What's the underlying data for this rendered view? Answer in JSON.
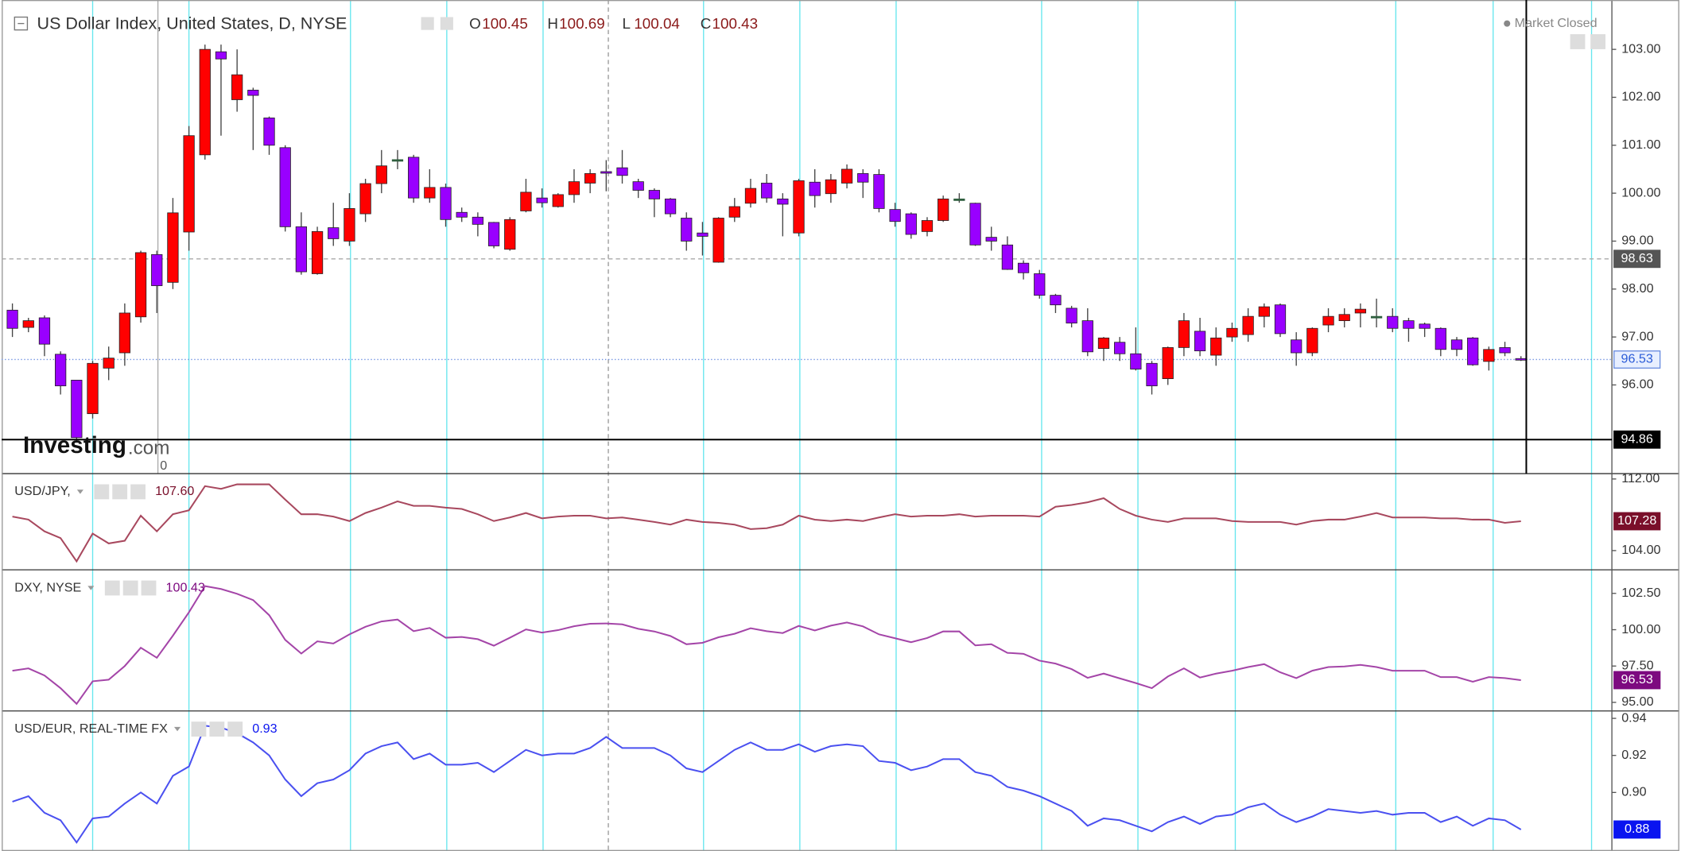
{
  "chart_data": [
    {
      "type": "candlestick",
      "title": "US Dollar Index, United States, D, NYSE",
      "header": [
        {
          "key": "O",
          "label": "100.45"
        },
        {
          "key": "H",
          "label": "100.69"
        },
        {
          "key": "L",
          "label": "100.04"
        },
        {
          "key": "C",
          "label": "100.43"
        }
      ],
      "status": "Market Closed",
      "logo": [
        "Investing",
        ".com"
      ],
      "annotations": [
        "0"
      ],
      "up_color": "#ff0000",
      "down_color": "#9900ff",
      "doji_color": "#2f5f3f",
      "ylim": [
        94.15,
        104.03
      ],
      "yticks": [
        {
          "value": 96,
          "label": "96.00"
        },
        {
          "value": 97,
          "label": "97.00"
        },
        {
          "value": 98,
          "label": "98.00"
        },
        {
          "value": 99,
          "label": "99.00"
        },
        {
          "value": 100,
          "label": "100.00"
        },
        {
          "value": 101,
          "label": "101.00"
        },
        {
          "value": 102,
          "label": "102.00"
        },
        {
          "value": 103,
          "label": "103.00"
        }
      ],
      "level_line": {
        "value": 98.63,
        "label": "98.63"
      },
      "crosshair": {
        "value": 94.86,
        "label": "94.86"
      },
      "last_label": "96.53",
      "open": [
        97.56,
        97.2,
        97.4,
        96.64,
        96.1,
        95.4,
        96.35,
        96.67,
        97.42,
        98.72,
        98.14,
        99.19,
        100.8,
        102.95,
        101.95,
        102.15,
        101.57,
        100.95,
        99.3,
        98.32,
        99.28,
        99.0,
        99.57,
        100.2,
        100.7,
        100.75,
        99.9,
        100.12,
        99.6,
        99.5,
        99.39,
        98.83,
        99.63,
        99.9,
        99.72,
        99.97,
        100.21,
        100.45,
        100.53,
        100.24,
        100.06,
        99.88,
        99.48,
        99.17,
        98.56,
        99.5,
        99.79,
        100.21,
        99.88,
        99.17,
        100.23,
        99.99,
        100.21,
        100.41,
        100.39,
        99.66,
        99.57,
        99.2,
        99.43,
        99.88,
        99.79,
        99.08,
        98.92,
        98.54,
        98.32,
        97.87,
        97.6,
        97.34,
        96.76,
        96.89,
        96.65,
        96.45,
        96.13,
        96.78,
        97.12,
        96.62,
        97.0,
        97.05,
        97.43,
        97.67,
        96.94,
        96.67,
        97.25,
        97.34,
        97.5,
        97.43,
        97.43,
        97.34,
        97.27,
        97.18,
        96.94,
        96.98,
        96.49,
        96.78,
        96.55
      ],
      "high": [
        97.7,
        97.4,
        97.45,
        96.7,
        96.1,
        96.5,
        96.8,
        97.7,
        98.8,
        98.8,
        99.9,
        101.4,
        103.1,
        103.1,
        103.0,
        102.2,
        101.6,
        101.0,
        99.6,
        99.3,
        99.8,
        100.0,
        100.3,
        100.9,
        100.9,
        100.8,
        100.5,
        100.2,
        99.7,
        99.6,
        99.4,
        99.5,
        100.3,
        100.1,
        100.0,
        100.5,
        100.5,
        100.69,
        100.9,
        100.3,
        100.1,
        99.9,
        99.6,
        99.4,
        99.5,
        99.9,
        100.3,
        100.4,
        100.0,
        100.3,
        100.5,
        100.4,
        100.6,
        100.5,
        100.5,
        99.8,
        99.6,
        99.5,
        99.95,
        100.0,
        99.8,
        99.3,
        99.1,
        98.6,
        98.4,
        97.9,
        97.65,
        97.6,
        97.0,
        97.0,
        97.2,
        96.5,
        96.8,
        97.5,
        97.4,
        97.2,
        97.3,
        97.6,
        97.7,
        97.7,
        97.1,
        97.2,
        97.6,
        97.6,
        97.7,
        97.8,
        97.6,
        97.4,
        97.3,
        97.2,
        97.0,
        97.0,
        96.8,
        96.9,
        96.6
      ],
      "low": [
        97.0,
        97.1,
        96.6,
        95.8,
        94.8,
        95.3,
        96.1,
        96.4,
        97.3,
        97.5,
        98.0,
        98.8,
        100.7,
        101.2,
        101.7,
        100.9,
        100.8,
        99.2,
        98.3,
        98.3,
        98.9,
        98.9,
        99.4,
        100.0,
        100.5,
        99.8,
        99.8,
        99.3,
        99.4,
        99.1,
        98.85,
        98.8,
        99.6,
        99.7,
        99.7,
        99.8,
        100.0,
        100.04,
        100.2,
        99.9,
        99.5,
        99.5,
        98.8,
        98.7,
        98.55,
        99.4,
        99.7,
        99.8,
        99.1,
        99.1,
        99.7,
        99.8,
        100.1,
        99.9,
        99.6,
        99.3,
        99.05,
        99.1,
        99.4,
        99.8,
        98.9,
        98.8,
        98.4,
        98.2,
        97.8,
        97.5,
        97.2,
        96.6,
        96.5,
        96.5,
        96.3,
        95.8,
        96.0,
        96.6,
        96.6,
        96.4,
        96.9,
        96.9,
        97.2,
        97.0,
        96.4,
        96.6,
        97.1,
        97.2,
        97.2,
        97.2,
        97.1,
        96.9,
        97.0,
        96.6,
        96.6,
        96.4,
        96.3,
        96.6,
        96.5
      ],
      "close": [
        97.18,
        97.34,
        96.85,
        95.98,
        94.9,
        96.45,
        96.56,
        97.5,
        98.76,
        98.07,
        99.59,
        101.2,
        103.0,
        102.8,
        102.47,
        102.04,
        101.0,
        99.3,
        98.36,
        99.2,
        99.05,
        99.68,
        100.2,
        100.57,
        100.7,
        99.9,
        100.12,
        99.45,
        99.5,
        99.35,
        98.9,
        99.45,
        100.02,
        99.8,
        99.97,
        100.24,
        100.41,
        100.43,
        100.37,
        100.06,
        99.88,
        99.57,
        99.0,
        99.1,
        99.48,
        99.72,
        100.1,
        99.9,
        99.77,
        100.26,
        99.95,
        100.28,
        100.5,
        100.23,
        99.68,
        99.41,
        99.14,
        99.43,
        99.88,
        99.88,
        98.92,
        99.0,
        98.41,
        98.34,
        97.87,
        97.67,
        97.29,
        96.69,
        96.98,
        96.65,
        96.33,
        95.98,
        96.78,
        97.34,
        96.71,
        96.98,
        97.18,
        97.43,
        97.63,
        97.07,
        96.67,
        97.18,
        97.43,
        97.47,
        97.58,
        97.43,
        97.18,
        97.18,
        97.18,
        96.74,
        96.74,
        96.42,
        96.74,
        96.67,
        96.53
      ]
    },
    {
      "type": "line",
      "title": "USD/JPY,",
      "hover_label": "107.60",
      "last_label": "107.28",
      "color": "#a8485e",
      "tag_color": "#7a0f2a",
      "ylim": [
        101.85,
        112.6
      ],
      "yticks": [
        {
          "value": 104,
          "label": "104.00"
        },
        {
          "value": 112,
          "label": "112.00"
        }
      ],
      "values": [
        107.8,
        107.46,
        106.15,
        105.4,
        102.8,
        105.9,
        104.8,
        105.1,
        107.9,
        106.15,
        108.06,
        108.5,
        111.2,
        110.9,
        111.4,
        111.4,
        111.4,
        109.7,
        108.06,
        108.06,
        107.8,
        107.3,
        108.2,
        108.8,
        109.5,
        109.0,
        109.0,
        108.8,
        108.65,
        108.06,
        107.3,
        107.7,
        108.2,
        107.6,
        107.8,
        107.9,
        107.9,
        107.6,
        107.7,
        107.46,
        107.2,
        106.9,
        107.46,
        107.2,
        107.1,
        106.9,
        106.4,
        106.5,
        106.9,
        107.9,
        107.46,
        107.3,
        107.46,
        107.3,
        107.7,
        108.06,
        107.8,
        107.9,
        107.9,
        108.06,
        107.8,
        107.9,
        107.9,
        107.9,
        107.8,
        108.9,
        109.1,
        109.4,
        109.85,
        108.65,
        107.9,
        107.46,
        107.2,
        107.6,
        107.6,
        107.6,
        107.3,
        107.2,
        107.2,
        107.2,
        106.9,
        107.3,
        107.46,
        107.46,
        107.8,
        108.2,
        107.7,
        107.7,
        107.7,
        107.6,
        107.6,
        107.46,
        107.46,
        107.1,
        107.28
      ]
    },
    {
      "type": "line",
      "title": "DXY, NYSE",
      "hover_label": "100.43",
      "last_label": "96.53",
      "color": "#a445a8",
      "tag_color": "#7d0a80",
      "ylim": [
        94.41,
        104.12
      ],
      "yticks": [
        {
          "value": 95,
          "label": "95.00"
        },
        {
          "value": 97.5,
          "label": "97.50"
        },
        {
          "value": 100,
          "label": "100.00"
        },
        {
          "value": 102.5,
          "label": "102.50"
        }
      ],
      "values": [
        97.18,
        97.34,
        96.85,
        95.98,
        94.9,
        96.45,
        96.56,
        97.5,
        98.76,
        98.07,
        99.59,
        101.2,
        103.0,
        102.8,
        102.47,
        102.04,
        101.0,
        99.3,
        98.36,
        99.2,
        99.05,
        99.68,
        100.2,
        100.57,
        100.7,
        99.9,
        100.12,
        99.45,
        99.5,
        99.35,
        98.9,
        99.45,
        100.02,
        99.8,
        99.97,
        100.24,
        100.41,
        100.43,
        100.37,
        100.06,
        99.88,
        99.57,
        99.0,
        99.1,
        99.48,
        99.72,
        100.1,
        99.9,
        99.77,
        100.26,
        99.95,
        100.28,
        100.5,
        100.23,
        99.68,
        99.41,
        99.14,
        99.43,
        99.88,
        99.88,
        98.92,
        99.0,
        98.41,
        98.34,
        97.87,
        97.67,
        97.29,
        96.69,
        96.98,
        96.65,
        96.33,
        95.98,
        96.78,
        97.34,
        96.71,
        96.98,
        97.18,
        97.43,
        97.63,
        97.07,
        96.67,
        97.18,
        97.43,
        97.47,
        97.58,
        97.43,
        97.18,
        97.18,
        97.18,
        96.74,
        96.74,
        96.42,
        96.74,
        96.67,
        96.53
      ]
    },
    {
      "type": "line",
      "title": "USD/EUR, REAL-TIME FX",
      "hover_label": "0.93",
      "last_label": "0.88",
      "color": "#4a50f0",
      "tag_color": "#0a14f0",
      "ylim": [
        0.8684,
        0.944
      ],
      "yticks": [
        {
          "value": 0.9,
          "label": "0.90"
        },
        0.92,
        0.94
      ],
      "values": [
        0.895,
        0.898,
        0.889,
        0.885,
        0.873,
        0.886,
        0.887,
        0.894,
        0.9,
        0.894,
        0.909,
        0.914,
        0.936,
        0.935,
        0.932,
        0.927,
        0.92,
        0.907,
        0.898,
        0.905,
        0.907,
        0.912,
        0.921,
        0.925,
        0.927,
        0.918,
        0.921,
        0.915,
        0.915,
        0.916,
        0.911,
        0.917,
        0.923,
        0.92,
        0.921,
        0.921,
        0.924,
        0.93,
        0.924,
        0.924,
        0.924,
        0.92,
        0.913,
        0.911,
        0.917,
        0.923,
        0.927,
        0.923,
        0.923,
        0.926,
        0.922,
        0.925,
        0.926,
        0.925,
        0.917,
        0.916,
        0.912,
        0.914,
        0.918,
        0.918,
        0.911,
        0.909,
        0.903,
        0.901,
        0.898,
        0.894,
        0.89,
        0.882,
        0.886,
        0.885,
        0.882,
        0.879,
        0.884,
        0.887,
        0.883,
        0.887,
        0.888,
        0.892,
        0.894,
        0.888,
        0.884,
        0.887,
        0.891,
        0.89,
        0.889,
        0.89,
        0.888,
        0.889,
        0.889,
        0.884,
        0.887,
        0.882,
        0.886,
        0.885,
        0.88
      ]
    }
  ]
}
